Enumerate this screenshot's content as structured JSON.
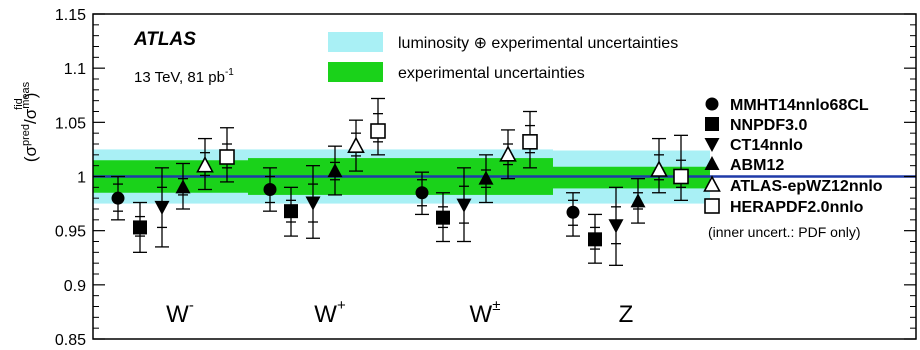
{
  "chart_data": {
    "type": "scatter",
    "ylabel": {
      "base": "(σ",
      "sup1": "pred",
      "mid": "/σ",
      "sup2": "meas",
      "sub2": "fid",
      "end": ")"
    },
    "ylim": [
      0.85,
      1.15
    ],
    "yticks": [
      {
        "value": 0.85,
        "label": "0.85"
      },
      {
        "value": 0.9,
        "label": "0.9"
      },
      {
        "value": 0.95,
        "label": "0.95"
      },
      {
        "value": 1.0,
        "label": "1"
      },
      {
        "value": 1.05,
        "label": "1.05"
      },
      {
        "value": 1.1,
        "label": "1.1"
      },
      {
        "value": 1.15,
        "label": "1.15"
      }
    ],
    "annotations": {
      "experiment": "ATLAS",
      "energy": "13 TeV, 81 pb",
      "lumi_exp": "-1",
      "inner_note": "(inner uncert.: PDF only)"
    },
    "bands_legend": [
      {
        "label": "luminosity ⊕ experimental uncertainties",
        "color": "#a9f0f5"
      },
      {
        "label": "experimental uncertainties",
        "color": "#1ad21a"
      }
    ],
    "reference_line": {
      "value": 1.0,
      "color": "#1f3aa8"
    },
    "categories": [
      {
        "base": "W",
        "sup": "-",
        "lumi_band": [
          0.975,
          1.025
        ],
        "exp_band": [
          0.985,
          1.015
        ]
      },
      {
        "base": "W",
        "sup": "+",
        "lumi_band": [
          0.975,
          1.025
        ],
        "exp_band": [
          0.983,
          1.017
        ]
      },
      {
        "base": "W",
        "sup": "±",
        "lumi_band": [
          0.975,
          1.025
        ],
        "exp_band": [
          0.983,
          1.017
        ]
      },
      {
        "base": "Z",
        "sup": "",
        "lumi_band": [
          0.975,
          1.024
        ],
        "exp_band": [
          0.989,
          1.009
        ]
      }
    ],
    "series": [
      {
        "name": "MMHT14nnlo68CL",
        "marker": "circle",
        "values": [
          0.98,
          0.988,
          0.985,
          0.967
        ],
        "err_total": [
          [
            0.96,
            1.0
          ],
          [
            0.968,
            1.008
          ],
          [
            0.965,
            1.004
          ],
          [
            0.945,
            0.985
          ]
        ],
        "err_pdf": [
          [
            0.968,
            0.993
          ],
          [
            0.976,
            1.0
          ],
          [
            0.973,
            0.997
          ],
          [
            0.955,
            0.978
          ]
        ]
      },
      {
        "name": "NNPDF3.0",
        "marker": "square",
        "values": [
          0.953,
          0.968,
          0.962,
          0.942
        ],
        "err_total": [
          [
            0.93,
            0.976
          ],
          [
            0.945,
            0.99
          ],
          [
            0.94,
            0.985
          ],
          [
            0.92,
            0.965
          ]
        ],
        "err_pdf": [
          [
            0.945,
            0.963
          ],
          [
            0.958,
            0.978
          ],
          [
            0.953,
            0.972
          ],
          [
            0.933,
            0.953
          ]
        ]
      },
      {
        "name": "CT14nnlo",
        "marker": "triangle-down",
        "values": [
          0.972,
          0.976,
          0.974,
          0.955
        ],
        "err_total": [
          [
            0.935,
            1.008
          ],
          [
            0.943,
            1.01
          ],
          [
            0.94,
            1.008
          ],
          [
            0.918,
            0.99
          ]
        ],
        "err_pdf": [
          [
            0.953,
            0.99
          ],
          [
            0.958,
            0.993
          ],
          [
            0.957,
            0.991
          ],
          [
            0.938,
            0.972
          ]
        ]
      },
      {
        "name": "ABM12",
        "marker": "triangle-up",
        "values": [
          0.99,
          1.005,
          0.998,
          0.977
        ],
        "err_total": [
          [
            0.97,
            1.012
          ],
          [
            0.983,
            1.028
          ],
          [
            0.976,
            1.02
          ],
          [
            0.957,
            0.998
          ]
        ],
        "err_pdf": [
          [
            0.983,
            0.998
          ],
          [
            0.997,
            1.013
          ],
          [
            0.99,
            1.006
          ],
          [
            0.97,
            0.985
          ]
        ]
      },
      {
        "name": "ATLAS-epWZ12nnlo",
        "marker": "triangle-up-open",
        "values": [
          1.01,
          1.028,
          1.02,
          1.006
        ],
        "err_total": [
          [
            0.988,
            1.035
          ],
          [
            1.005,
            1.052
          ],
          [
            0.998,
            1.043
          ],
          [
            0.985,
            1.035
          ]
        ],
        "err_pdf": [
          [
            1.001,
            1.022
          ],
          [
            1.019,
            1.04
          ],
          [
            1.011,
            1.03
          ],
          [
            0.997,
            1.02
          ]
        ]
      },
      {
        "name": "HERAPDF2.0nnlo",
        "marker": "square-open",
        "values": [
          1.018,
          1.042,
          1.032,
          1.0
        ],
        "err_total": [
          [
            0.995,
            1.045
          ],
          [
            1.02,
            1.072
          ],
          [
            1.008,
            1.06
          ],
          [
            0.978,
            1.038
          ]
        ],
        "err_pdf": [
          [
            1.008,
            1.03
          ],
          [
            1.032,
            1.058
          ],
          [
            1.022,
            1.047
          ],
          [
            0.99,
            1.015
          ]
        ]
      }
    ]
  }
}
